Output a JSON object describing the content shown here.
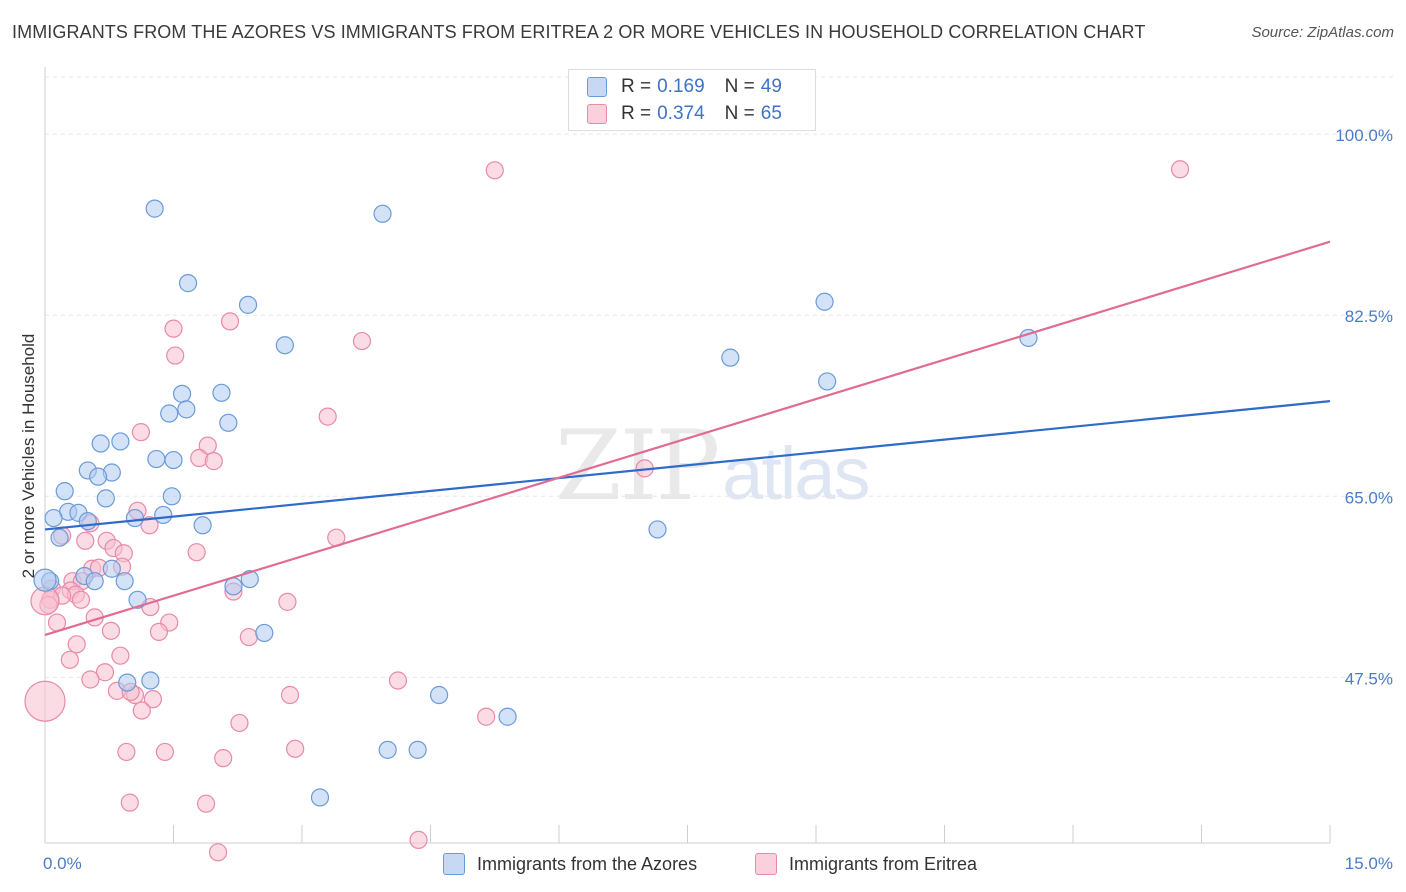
{
  "title": "IMMIGRANTS FROM THE AZORES VS IMMIGRANTS FROM ERITREA 2 OR MORE VEHICLES IN HOUSEHOLD CORRELATION CHART",
  "source": "Source: ZipAtlas.com",
  "watermark": {
    "zip": "ZIP",
    "atlas": "atlas"
  },
  "legend": {
    "r_label": "R =",
    "n_label": "N =",
    "series": [
      {
        "r": "0.169",
        "n": "49"
      },
      {
        "r": "0.374",
        "n": "65"
      }
    ]
  },
  "colors": {
    "azores_fill": "#aecbf0",
    "azores_stroke": "#6b9bd8",
    "azores_line": "#2f6cc9",
    "eritrea_fill": "#f7c0d0",
    "eritrea_stroke": "#e88aa8",
    "eritrea_line": "#e06c95",
    "grid": "#e6e6e6",
    "tick_text": "#4a7cc9"
  },
  "chart_data": {
    "type": "scatter",
    "title": "IMMIGRANTS FROM THE AZORES VS IMMIGRANTS FROM ERITREA 2 OR MORE VEHICLES IN HOUSEHOLD CORRELATION CHART",
    "xlabel": "",
    "ylabel": "2 or more Vehicles in Household",
    "xlim": [
      0,
      15
    ],
    "ylim": [
      31.5,
      106
    ],
    "x_tick_labels": [
      "0.0%",
      "15.0%"
    ],
    "y_ticks": [
      47.5,
      65.0,
      82.5,
      100.0
    ],
    "y_tick_labels": [
      "47.5%",
      "65.0%",
      "82.5%",
      "100.0%"
    ],
    "legend_position": "top-center",
    "series": [
      {
        "name": "Immigrants from the Azores",
        "r": 0.169,
        "n": 49,
        "trend": [
          [
            0,
            61.8
          ],
          [
            15,
            74.2
          ]
        ],
        "points": [
          [
            1.28,
            92.8
          ],
          [
            3.94,
            92.3
          ],
          [
            1.67,
            85.6
          ],
          [
            2.37,
            83.5
          ],
          [
            9.1,
            83.8
          ],
          [
            2.8,
            79.6
          ],
          [
            11.48,
            80.3
          ],
          [
            8.0,
            78.4
          ],
          [
            9.13,
            76.1
          ],
          [
            1.6,
            74.9
          ],
          [
            2.06,
            75.0
          ],
          [
            1.45,
            73.0
          ],
          [
            1.65,
            73.4
          ],
          [
            2.14,
            72.1
          ],
          [
            0.65,
            70.1
          ],
          [
            0.88,
            70.3
          ],
          [
            1.3,
            68.6
          ],
          [
            1.5,
            68.5
          ],
          [
            0.5,
            67.5
          ],
          [
            0.78,
            67.3
          ],
          [
            0.62,
            66.9
          ],
          [
            0.23,
            65.5
          ],
          [
            1.48,
            65.0
          ],
          [
            0.71,
            64.8
          ],
          [
            0.27,
            63.5
          ],
          [
            0.39,
            63.4
          ],
          [
            1.38,
            63.2
          ],
          [
            0.1,
            62.9
          ],
          [
            0.5,
            62.6
          ],
          [
            1.05,
            62.9
          ],
          [
            1.84,
            62.2
          ],
          [
            7.15,
            61.8
          ],
          [
            0.17,
            61.0
          ],
          [
            0.78,
            58.0
          ],
          [
            0.46,
            57.3
          ],
          [
            0.58,
            56.8
          ],
          [
            0.06,
            56.8
          ],
          [
            0.93,
            56.8
          ],
          [
            2.39,
            57.0
          ],
          [
            2.2,
            56.3
          ],
          [
            1.08,
            55.0
          ],
          [
            2.56,
            51.8
          ],
          [
            0.96,
            47.0
          ],
          [
            1.23,
            47.2
          ],
          [
            4.6,
            45.8
          ],
          [
            5.4,
            43.7
          ],
          [
            4.0,
            40.5
          ],
          [
            4.35,
            40.5
          ],
          [
            3.21,
            35.9
          ]
        ]
      },
      {
        "name": "Immigrants from Eritrea",
        "r": 0.374,
        "n": 65,
        "trend": [
          [
            0,
            51.6
          ],
          [
            15,
            89.6
          ]
        ],
        "points": [
          [
            5.25,
            96.5
          ],
          [
            13.25,
            96.6
          ],
          [
            1.5,
            81.2
          ],
          [
            2.16,
            81.9
          ],
          [
            3.7,
            80.0
          ],
          [
            1.52,
            78.6
          ],
          [
            3.3,
            72.7
          ],
          [
            1.12,
            71.2
          ],
          [
            1.9,
            69.9
          ],
          [
            1.8,
            68.7
          ],
          [
            1.97,
            68.4
          ],
          [
            7.0,
            67.7
          ],
          [
            1.08,
            63.6
          ],
          [
            0.53,
            62.4
          ],
          [
            1.22,
            62.2
          ],
          [
            0.2,
            61.2
          ],
          [
            3.4,
            61.0
          ],
          [
            0.47,
            60.7
          ],
          [
            0.72,
            60.7
          ],
          [
            0.8,
            60.0
          ],
          [
            0.92,
            59.5
          ],
          [
            1.77,
            59.6
          ],
          [
            0.9,
            58.2
          ],
          [
            0.55,
            58.0
          ],
          [
            0.63,
            58.1
          ],
          [
            0.32,
            56.8
          ],
          [
            0.43,
            56.8
          ],
          [
            0.08,
            56.1
          ],
          [
            0.3,
            55.9
          ],
          [
            2.2,
            55.8
          ],
          [
            0.36,
            55.5
          ],
          [
            0.2,
            55.4
          ],
          [
            0.06,
            55.0
          ],
          [
            0.42,
            55.0
          ],
          [
            0.04,
            54.5
          ],
          [
            2.83,
            54.8
          ],
          [
            1.23,
            54.3
          ],
          [
            0.58,
            53.3
          ],
          [
            0.14,
            52.8
          ],
          [
            1.45,
            52.8
          ],
          [
            0.77,
            52.0
          ],
          [
            1.33,
            51.9
          ],
          [
            2.38,
            51.4
          ],
          [
            0.37,
            50.7
          ],
          [
            0.88,
            49.6
          ],
          [
            0.29,
            49.2
          ],
          [
            0.7,
            48.0
          ],
          [
            4.12,
            47.2
          ],
          [
            0.53,
            47.3
          ],
          [
            0.84,
            46.2
          ],
          [
            2.86,
            45.8
          ],
          [
            1.05,
            45.8
          ],
          [
            1.0,
            46.1
          ],
          [
            1.26,
            45.4
          ],
          [
            1.13,
            44.3
          ],
          [
            5.15,
            43.7
          ],
          [
            2.27,
            43.1
          ],
          [
            0.95,
            40.3
          ],
          [
            1.4,
            40.3
          ],
          [
            2.92,
            40.6
          ],
          [
            2.08,
            39.7
          ],
          [
            0.99,
            35.4
          ],
          [
            1.88,
            35.3
          ],
          [
            4.36,
            31.8
          ],
          [
            2.02,
            30.6
          ]
        ]
      }
    ]
  },
  "bottom_legend": [
    "Immigrants from the Azores",
    "Immigrants from Eritrea"
  ]
}
